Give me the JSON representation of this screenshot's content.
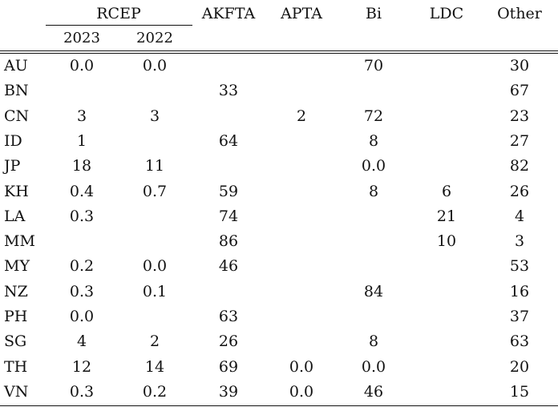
{
  "table": {
    "group_header": "RCEP",
    "columns": [
      "AKFTA",
      "APTA",
      "Bi",
      "LDC",
      "Other"
    ],
    "sub_columns": [
      "2023",
      "2022"
    ],
    "rows": [
      {
        "label": "AU",
        "r2023": "0.0",
        "r2022": "0.0",
        "akfta": "",
        "apta": "",
        "bi": "70",
        "ldc": "",
        "other": "30"
      },
      {
        "label": "BN",
        "r2023": "",
        "r2022": "",
        "akfta": "33",
        "apta": "",
        "bi": "",
        "ldc": "",
        "other": "67"
      },
      {
        "label": "CN",
        "r2023": "3",
        "r2022": "3",
        "akfta": "",
        "apta": "2",
        "bi": "72",
        "ldc": "",
        "other": "23"
      },
      {
        "label": "ID",
        "r2023": "1",
        "r2022": "",
        "akfta": "64",
        "apta": "",
        "bi": "8",
        "ldc": "",
        "other": "27"
      },
      {
        "label": "JP",
        "r2023": "18",
        "r2022": "11",
        "akfta": "",
        "apta": "",
        "bi": "0.0",
        "ldc": "",
        "other": "82"
      },
      {
        "label": "KH",
        "r2023": "0.4",
        "r2022": "0.7",
        "akfta": "59",
        "apta": "",
        "bi": "8",
        "ldc": "6",
        "other": "26"
      },
      {
        "label": "LA",
        "r2023": "0.3",
        "r2022": "",
        "akfta": "74",
        "apta": "",
        "bi": "",
        "ldc": "21",
        "other": "4"
      },
      {
        "label": "MM",
        "r2023": "",
        "r2022": "",
        "akfta": "86",
        "apta": "",
        "bi": "",
        "ldc": "10",
        "other": "3"
      },
      {
        "label": "MY",
        "r2023": "0.2",
        "r2022": "0.0",
        "akfta": "46",
        "apta": "",
        "bi": "",
        "ldc": "",
        "other": "53"
      },
      {
        "label": "NZ",
        "r2023": "0.3",
        "r2022": "0.1",
        "akfta": "",
        "apta": "",
        "bi": "84",
        "ldc": "",
        "other": "16"
      },
      {
        "label": "PH",
        "r2023": "0.0",
        "r2022": "",
        "akfta": "63",
        "apta": "",
        "bi": "",
        "ldc": "",
        "other": "37"
      },
      {
        "label": "SG",
        "r2023": "4",
        "r2022": "2",
        "akfta": "26",
        "apta": "",
        "bi": "8",
        "ldc": "",
        "other": "63"
      },
      {
        "label": "TH",
        "r2023": "12",
        "r2022": "14",
        "akfta": "69",
        "apta": "0.0",
        "bi": "0.0",
        "ldc": "",
        "other": "20"
      },
      {
        "label": "VN",
        "r2023": "0.3",
        "r2022": "0.2",
        "akfta": "39",
        "apta": "0.0",
        "bi": "46",
        "ldc": "",
        "other": "15"
      }
    ]
  }
}
